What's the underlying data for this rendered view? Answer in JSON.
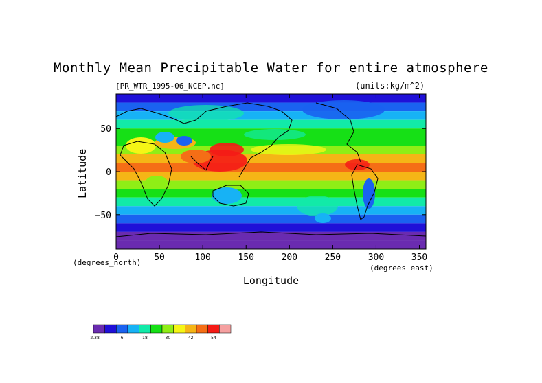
{
  "chart_data": {
    "type": "heatmap",
    "title": "Monthly Mean Precipitable Water for entire atmosphere",
    "subtitle_left": "[PR_WTR_1995-06_NCEP.nc]",
    "subtitle_right": "(units:kg/m^2)",
    "xlabel": "Longitude",
    "ylabel": "Latitude",
    "x_unit_label": "(degrees_east)",
    "y_unit_label": "(degrees_north)",
    "xlim": [
      0,
      357.5
    ],
    "ylim": [
      -90,
      90
    ],
    "x_ticks": [
      0,
      50,
      100,
      150,
      200,
      250,
      300,
      350
    ],
    "y_ticks": [
      50,
      0,
      -50
    ],
    "colorbar": {
      "colors": [
        "#6a2bb0",
        "#1f10d8",
        "#1a62f0",
        "#17b2f5",
        "#12eaa8",
        "#16e016",
        "#8fee16",
        "#f5f516",
        "#f5b516",
        "#f56e16",
        "#f51b16",
        "#f5a0a0"
      ],
      "labels": [
        "-2.38",
        "6",
        "18",
        "30",
        "42",
        "54"
      ]
    },
    "latitude_band_means": [
      {
        "lat": 85,
        "value": 4
      },
      {
        "lat": 75,
        "value": 12
      },
      {
        "lat": 65,
        "value": 18
      },
      {
        "lat": 55,
        "value": 22
      },
      {
        "lat": 45,
        "value": 24
      },
      {
        "lat": 35,
        "value": 26
      },
      {
        "lat": 25,
        "value": 34
      },
      {
        "lat": 15,
        "value": 44
      },
      {
        "lat": 5,
        "value": 48
      },
      {
        "lat": -5,
        "value": 42
      },
      {
        "lat": -15,
        "value": 34
      },
      {
        "lat": -25,
        "value": 26
      },
      {
        "lat": -35,
        "value": 20
      },
      {
        "lat": -45,
        "value": 14
      },
      {
        "lat": -55,
        "value": 9
      },
      {
        "lat": -65,
        "value": 5
      },
      {
        "lat": -75,
        "value": 1
      },
      {
        "lat": -85,
        "value": 0
      }
    ]
  }
}
